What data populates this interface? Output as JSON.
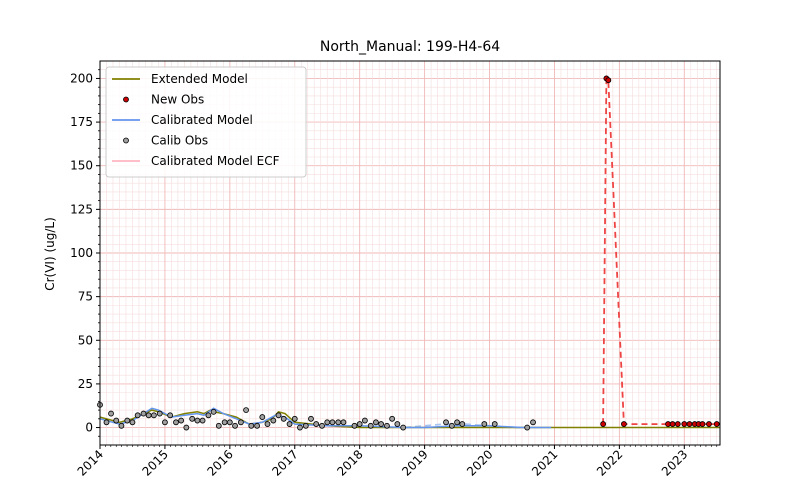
{
  "chart_data": {
    "type": "line",
    "title": "North_Manual: 199-H4-64",
    "xlabel": "",
    "ylabel": "Cr(VI) (ug/L)",
    "xlim": [
      2014.0,
      2023.55
    ],
    "ylim": [
      -10,
      210
    ],
    "x_ticks": [
      2014,
      2015,
      2016,
      2017,
      2018,
      2019,
      2020,
      2021,
      2022,
      2023
    ],
    "x_tick_labels": [
      "2014",
      "2015",
      "2016",
      "2017",
      "2018",
      "2019",
      "2020",
      "2021",
      "2022",
      "2023"
    ],
    "y_ticks": [
      0,
      25,
      50,
      75,
      100,
      125,
      150,
      175,
      200
    ],
    "y_tick_labels": [
      "0",
      "25",
      "50",
      "75",
      "100",
      "125",
      "150",
      "175",
      "200"
    ],
    "grid": true,
    "legend_position": "top-left",
    "legend": [
      {
        "label": "Extended Model",
        "kind": "line",
        "color": "#808000"
      },
      {
        "label": "New Obs",
        "kind": "marker",
        "color": "#cc0000"
      },
      {
        "label": "Calibrated Model",
        "kind": "line",
        "color": "#6495ed"
      },
      {
        "label": "Calib Obs",
        "kind": "marker",
        "color": "#a0a0a0"
      },
      {
        "label": "Calibrated Model ECF",
        "kind": "line",
        "color": "#ffb6c1"
      }
    ],
    "series": [
      {
        "name": "Extended Model",
        "kind": "line",
        "color": "#808000",
        "x": [
          2014.0,
          2014.3,
          2014.5,
          2014.8,
          2014.9,
          2015.1,
          2015.3,
          2015.5,
          2015.6,
          2015.7,
          2015.75,
          2015.9,
          2016.1,
          2016.3,
          2016.5,
          2016.65,
          2016.75,
          2016.85,
          2017.0,
          2017.5,
          2018.0,
          2019.0,
          2020.0,
          2021.0,
          2022.0,
          2023.55
        ],
        "y": [
          6,
          3,
          5,
          10,
          9,
          6,
          8,
          9,
          8,
          10,
          9,
          8,
          6,
          2,
          3,
          5,
          9,
          8,
          3,
          1,
          0,
          0,
          0,
          0,
          0,
          0
        ]
      },
      {
        "name": "Calibrated Model",
        "kind": "line",
        "color": "#6495ed",
        "x": [
          2014.0,
          2014.3,
          2014.5,
          2014.8,
          2014.9,
          2015.1,
          2015.3,
          2015.5,
          2015.6,
          2015.75,
          2015.9,
          2016.1,
          2016.3,
          2016.5,
          2016.7,
          2016.85,
          2017.0,
          2017.5,
          2018.0,
          2018.7,
          2019.0,
          2019.5,
          2020.0,
          2020.5,
          2020.95
        ],
        "y": [
          5,
          2,
          4,
          11,
          10,
          6,
          7,
          8,
          7,
          11,
          8,
          5,
          2,
          3,
          7,
          6,
          2,
          1,
          1,
          0,
          0,
          1,
          1,
          0,
          0
        ]
      },
      {
        "name": "Calibrated Model dashed",
        "kind": "dashed-line",
        "color": "#aac4f0",
        "x": [
          2018.7,
          2019.0,
          2019.3,
          2019.6,
          2020.0,
          2020.4,
          2020.7
        ],
        "y": [
          0,
          1,
          2,
          2,
          1,
          0,
          0
        ]
      },
      {
        "name": "New Obs connector",
        "kind": "dashed-line",
        "color": "#ee4444",
        "x": [
          2021.75,
          2021.8,
          2021.83,
          2022.07,
          2022.75,
          2023.55
        ],
        "y": [
          2,
          200,
          199,
          2,
          2,
          2
        ]
      },
      {
        "name": "New Obs",
        "kind": "marker",
        "color": "#cc0000",
        "x": [
          2021.75,
          2021.8,
          2021.83,
          2022.07,
          2022.75,
          2022.82,
          2022.9,
          2023.0,
          2023.08,
          2023.16,
          2023.22,
          2023.28,
          2023.38,
          2023.5
        ],
        "y": [
          2,
          200,
          199,
          2,
          2,
          2,
          2,
          2,
          2,
          2,
          2,
          2,
          2,
          2
        ]
      },
      {
        "name": "Calib Obs",
        "kind": "marker",
        "color": "#a0a0a0",
        "x": [
          2014.0,
          2014.1,
          2014.17,
          2014.25,
          2014.33,
          2014.42,
          2014.5,
          2014.58,
          2014.67,
          2014.75,
          2014.83,
          2014.92,
          2015.0,
          2015.08,
          2015.17,
          2015.25,
          2015.33,
          2015.42,
          2015.5,
          2015.58,
          2015.67,
          2015.75,
          2015.83,
          2015.92,
          2016.0,
          2016.08,
          2016.17,
          2016.25,
          2016.33,
          2016.42,
          2016.5,
          2016.58,
          2016.67,
          2016.75,
          2016.83,
          2016.92,
          2017.0,
          2017.08,
          2017.17,
          2017.25,
          2017.33,
          2017.42,
          2017.5,
          2017.58,
          2017.67,
          2017.75,
          2017.92,
          2018.0,
          2018.08,
          2018.17,
          2018.25,
          2018.33,
          2018.42,
          2018.5,
          2018.58,
          2018.67,
          2019.33,
          2019.42,
          2019.5,
          2019.58,
          2019.92,
          2020.08,
          2020.58,
          2020.67
        ],
        "y": [
          13,
          3,
          8,
          4,
          1,
          4,
          3,
          7,
          8,
          7,
          7,
          8,
          3,
          7,
          3,
          4,
          0,
          5,
          4,
          4,
          7,
          9,
          1,
          3,
          3,
          1,
          3,
          10,
          1,
          1,
          6,
          2,
          4,
          7,
          5,
          2,
          5,
          0,
          1,
          5,
          2,
          1,
          3,
          3,
          3,
          3,
          1,
          2,
          4,
          1,
          3,
          2,
          1,
          5,
          2,
          0,
          3,
          1,
          3,
          2,
          2,
          2,
          0,
          3
        ]
      }
    ]
  }
}
